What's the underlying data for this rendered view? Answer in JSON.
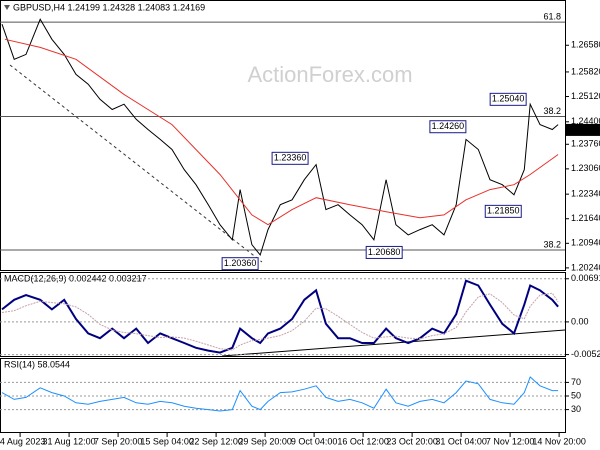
{
  "chart_data": [
    {
      "type": "line",
      "title": "GBPUSD,H4  1.24199 1.24328 1.24083 1.24169",
      "watermark": "ActionForex.com",
      "xlim": [
        -0.41,
        11.12
      ],
      "ylim": [
        1.2018,
        1.2784
      ],
      "yticks": [
        {
          "value": 1.2658,
          "label": "1.26580"
        },
        {
          "value": 1.2582,
          "label": "1.25820"
        },
        {
          "value": 1.2512,
          "label": "1.25120"
        },
        {
          "value": 1.244,
          "label": "1.24400"
        },
        {
          "value": 1.2376,
          "label": "1.23760"
        },
        {
          "value": 1.2306,
          "label": "1.23060"
        },
        {
          "value": 1.2234,
          "label": "1.22340"
        },
        {
          "value": 1.2164,
          "label": "1.21640"
        },
        {
          "value": 1.2094,
          "label": "1.20940"
        },
        {
          "value": 1.2024,
          "label": "1.20240"
        }
      ],
      "x": [
        -0.37,
        -0.12,
        0.12,
        0.41,
        0.65,
        0.9,
        1.14,
        1.39,
        1.63,
        1.88,
        2.12,
        2.37,
        2.61,
        2.86,
        3.1,
        3.35,
        3.59,
        3.84,
        4.08,
        4.33,
        4.49,
        4.73,
        4.9,
        5.06,
        5.31,
        5.55,
        5.8,
        6.04,
        6.24,
        6.49,
        6.73,
        6.98,
        7.22,
        7.47,
        7.67,
        7.92,
        8.16,
        8.41,
        8.65,
        8.9,
        9.1,
        9.35,
        9.59,
        9.84,
        10.08,
        10.29,
        10.41,
        10.61,
        10.86,
        10.98
      ],
      "series": [
        {
          "name": "GBPUSD",
          "color": "#000000",
          "values": [
            1.2718,
            1.2618,
            1.2632,
            1.2732,
            1.2675,
            1.2632,
            1.2575,
            1.2547,
            1.2504,
            1.2475,
            1.249,
            1.2447,
            1.2418,
            1.239,
            1.2361,
            1.2304,
            1.2261,
            1.2204,
            1.2147,
            1.2104,
            1.2247,
            1.209,
            1.2061,
            1.2133,
            1.2204,
            1.2218,
            1.2275,
            1.2318,
            1.219,
            1.2204,
            1.2175,
            1.2147,
            1.2104,
            1.2275,
            1.2147,
            1.2118,
            1.2133,
            1.2147,
            1.2118,
            1.2204,
            1.239,
            1.2361,
            1.2275,
            1.2261,
            1.2232,
            1.2304,
            1.249,
            1.2432,
            1.2418,
            1.2432
          ]
        },
        {
          "name": "MA",
          "color": "#e8302a",
          "x": [
            -0.31,
            0.41,
            1.14,
            2.12,
            3.1,
            4.08,
            4.73,
            5.06,
            5.55,
            6.04,
            6.73,
            7.47,
            8.16,
            8.65,
            9.1,
            9.59,
            10.08,
            10.41,
            10.98
          ],
          "values": [
            1.2675,
            1.2652,
            1.2618,
            1.2518,
            1.2432,
            1.229,
            1.2175,
            1.2147,
            1.219,
            1.2224,
            1.2204,
            1.2184,
            1.2167,
            1.2175,
            1.2218,
            1.2247,
            1.2261,
            1.229,
            1.2347
          ]
        }
      ],
      "levels": [
        {
          "value": 1.2724,
          "label": "61.8"
        },
        {
          "value": 1.2455,
          "label": "38.2"
        },
        {
          "value": 1.2075,
          "label": "38.2"
        }
      ],
      "annotations": [
        {
          "value": 1.2036,
          "label": "1.20360",
          "x": 4.49
        },
        {
          "value": 1.2336,
          "label": "1.23360",
          "x": 5.51
        },
        {
          "value": 1.2068,
          "label": "1.20680",
          "x": 7.43
        },
        {
          "value": 1.2426,
          "label": "1.24260",
          "x": 8.73
        },
        {
          "value": 1.2185,
          "label": "1.21850",
          "x": 9.86
        },
        {
          "value": 1.2504,
          "label": "1.25040",
          "x": 9.96
        }
      ],
      "current_price": {
        "value": 1.24169,
        "label": "1.24169"
      }
    },
    {
      "type": "line",
      "title": "MACD(12,26,9) 0.002442 0.003217",
      "xlim": [
        -0.41,
        11.12
      ],
      "ylim": [
        -0.00547,
        0.00784
      ],
      "yticks": [
        0.006915,
        {
          "value": 0,
          "label": "0.00"
        },
        -0.005241
      ],
      "x": [
        -0.37,
        -0.12,
        0.12,
        0.41,
        0.65,
        0.9,
        1.14,
        1.39,
        1.63,
        1.88,
        2.12,
        2.37,
        2.61,
        2.86,
        3.1,
        3.35,
        3.59,
        3.84,
        4.08,
        4.33,
        4.49,
        4.73,
        4.9,
        5.06,
        5.31,
        5.55,
        5.8,
        6.04,
        6.24,
        6.49,
        6.73,
        6.98,
        7.22,
        7.47,
        7.67,
        7.92,
        8.16,
        8.41,
        8.65,
        8.9,
        9.1,
        9.35,
        9.59,
        9.84,
        10.08,
        10.29,
        10.41,
        10.61,
        10.86,
        10.98
      ],
      "series": [
        {
          "name": "MACD",
          "color": "#000080",
          "values": [
            0.002,
            0.00354,
            0.0043,
            0.00354,
            0.002,
            0.00354,
            0.00046,
            -0.00184,
            -0.00261,
            -0.00108,
            -0.00261,
            -0.00108,
            -0.00338,
            -0.00184,
            -0.00261,
            -0.00338,
            -0.00415,
            -0.00461,
            -0.00492,
            -0.00415,
            -0.00108,
            -0.00261,
            -0.00338,
            -0.00184,
            -0.00108,
            0.00046,
            0.00354,
            0.00507,
            -0.00031,
            -0.00261,
            -0.00261,
            -0.00338,
            -0.00338,
            -0.00108,
            -0.00261,
            -0.00338,
            -0.00261,
            -0.00108,
            -0.00184,
            0.00123,
            0.00661,
            0.00584,
            0.00277,
            -0.00031,
            -0.00184,
            0.00277,
            0.00584,
            0.00507,
            0.00354,
            0.00244
          ]
        },
        {
          "name": "Signal",
          "color": "#c8a0a8",
          "values": [
            0.0015,
            0.0018,
            0.0026,
            0.0033,
            0.0031,
            0.0029,
            0.0024,
            0.0012,
            -0.0004,
            -0.0013,
            -0.0017,
            -0.0019,
            -0.0022,
            -0.0025,
            -0.0024,
            -0.0026,
            -0.0031,
            -0.0037,
            -0.0043,
            -0.0045,
            -0.0037,
            -0.003,
            -0.0028,
            -0.0026,
            -0.0022,
            -0.0014,
            0.0001,
            0.0022,
            0.0021,
            0.0009,
            -0.0004,
            -0.0017,
            -0.0026,
            -0.0024,
            -0.0023,
            -0.0026,
            -0.0027,
            -0.0022,
            -0.0019,
            -0.0009,
            0.0016,
            0.004,
            0.0045,
            0.0031,
            0.0011,
            0.0005,
            0.0025,
            0.0043,
            0.0046,
            0.00322
          ]
        }
      ]
    },
    {
      "type": "line",
      "title": "RSI(14) 58.0544",
      "xlim": [
        -0.41,
        11.12
      ],
      "ylim": [
        0,
        100
      ],
      "yticks": [
        70,
        50,
        30
      ],
      "xticks": [
        {
          "value": 0,
          "label": "24 Aug 2023"
        },
        {
          "value": 1,
          "label": "31 Aug 12:00"
        },
        {
          "value": 2,
          "label": "7 Sep 20:00"
        },
        {
          "value": 3,
          "label": "15 Sep 04:00"
        },
        {
          "value": 4,
          "label": "22 Sep 12:00"
        },
        {
          "value": 5,
          "label": "29 Sep 20:00"
        },
        {
          "value": 6,
          "label": "9 Oct 04:00"
        },
        {
          "value": 7,
          "label": "16 Oct 12:00"
        },
        {
          "value": 8,
          "label": "23 Oct 20:00"
        },
        {
          "value": 9,
          "label": "31 Oct 04:00"
        },
        {
          "value": 10,
          "label": "7 Nov 12:00"
        },
        {
          "value": 11,
          "label": "14 Nov 20:00"
        }
      ],
      "x": [
        -0.37,
        -0.12,
        0.12,
        0.41,
        0.65,
        0.9,
        1.14,
        1.39,
        1.63,
        1.88,
        2.12,
        2.37,
        2.61,
        2.86,
        3.1,
        3.35,
        3.59,
        3.84,
        4.08,
        4.33,
        4.49,
        4.73,
        4.9,
        5.06,
        5.31,
        5.55,
        5.8,
        6.04,
        6.24,
        6.49,
        6.73,
        6.98,
        7.22,
        7.47,
        7.67,
        7.92,
        8.16,
        8.41,
        8.65,
        8.9,
        9.1,
        9.35,
        9.59,
        9.84,
        10.08,
        10.29,
        10.41,
        10.61,
        10.86,
        10.98
      ],
      "series": [
        {
          "name": "RSI",
          "color": "#1e90ff",
          "values": [
            55,
            45,
            48,
            62,
            55,
            50,
            40,
            38,
            42,
            45,
            48,
            40,
            38,
            42,
            40,
            35,
            32,
            30,
            28,
            30,
            58,
            35,
            30,
            42,
            55,
            56,
            60,
            65,
            48,
            42,
            45,
            40,
            32,
            60,
            40,
            35,
            42,
            45,
            40,
            55,
            72,
            68,
            45,
            40,
            38,
            55,
            78,
            65,
            58,
            58
          ]
        }
      ]
    }
  ]
}
